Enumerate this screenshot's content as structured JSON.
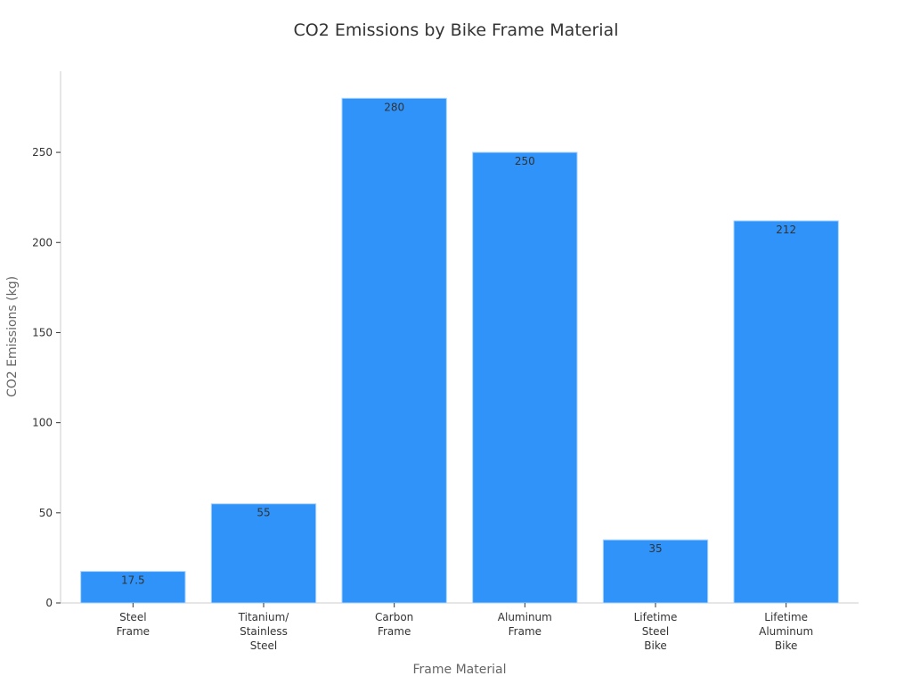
{
  "chart_data": {
    "type": "bar",
    "title": "CO2 Emissions by Bike Frame Material",
    "xlabel": "Frame Material",
    "ylabel": "CO2 Emissions (kg)",
    "categories": [
      [
        "Steel",
        "Frame"
      ],
      [
        "Titanium/",
        "Stainless",
        "Steel"
      ],
      [
        "Carbon",
        "Frame"
      ],
      [
        "Aluminum",
        "Frame"
      ],
      [
        "Lifetime",
        "Steel",
        "Bike"
      ],
      [
        "Lifetime",
        "Aluminum",
        "Bike"
      ]
    ],
    "values": [
      17.5,
      55,
      280,
      250,
      35,
      212
    ],
    "value_labels": [
      "17.5",
      "55",
      "280",
      "250",
      "35",
      "212"
    ],
    "yticks": [
      0,
      50,
      100,
      150,
      200,
      250
    ],
    "ylim": [
      0,
      295
    ],
    "grid": false,
    "legend": "none",
    "bar_color": "#2f93f9",
    "bar_edge_color": "#a9d3ff"
  }
}
